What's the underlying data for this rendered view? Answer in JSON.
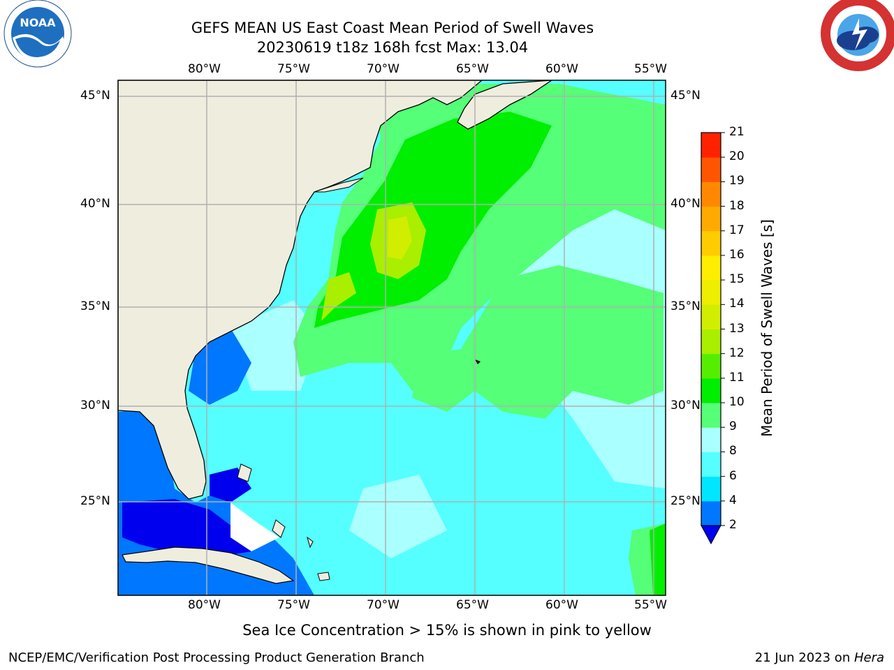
{
  "title": {
    "line1": "GEFS MEAN US East Coast Mean Period of Swell Waves",
    "line2": "20230619 t18z 168h fcst   Max: 13.04"
  },
  "logos": {
    "noaa_text": "NOAA",
    "noaa_ring_text": "NATIONAL OCEANIC AND ATMOSPHERIC ADMINISTRATION · U.S. DEPARTMENT OF COMMERCE",
    "nws_ring_text": "NATIONAL WEATHER SERVICE"
  },
  "map": {
    "lon_labels": [
      "80°W",
      "75°W",
      "70°W",
      "65°W",
      "60°W",
      "55°W"
    ],
    "lat_labels": [
      "45°N",
      "40°N",
      "35°N",
      "30°N",
      "25°N"
    ],
    "land_color": "#efedde",
    "grid_color": "#b0b0b0"
  },
  "colorbar": {
    "label": "Mean Period of Swell Waves [s]",
    "ticks": [
      "2",
      "4",
      "6",
      "8",
      "9",
      "10",
      "11",
      "12",
      "13",
      "14",
      "15",
      "16",
      "17",
      "18",
      "19",
      "20",
      "21"
    ],
    "under_color": "#0000ee",
    "colors": [
      "#0077ff",
      "#00e6ff",
      "#55ffff",
      "#aaffff",
      "#55ff77",
      "#00ee00",
      "#55ee00",
      "#aaee00",
      "#d2ee00",
      "#eeee00",
      "#ffee00",
      "#ffcc00",
      "#ffaa00",
      "#ff8800",
      "#ff5500",
      "#ff2200",
      "#ff0000"
    ]
  },
  "footer": {
    "caption": "Sea Ice Concentration > 15% is shown in pink to yellow",
    "left": "NCEP/EMC/Verification Post Processing Product Generation Branch",
    "right_date": "21 Jun 2023 on ",
    "right_host": "Hera"
  }
}
